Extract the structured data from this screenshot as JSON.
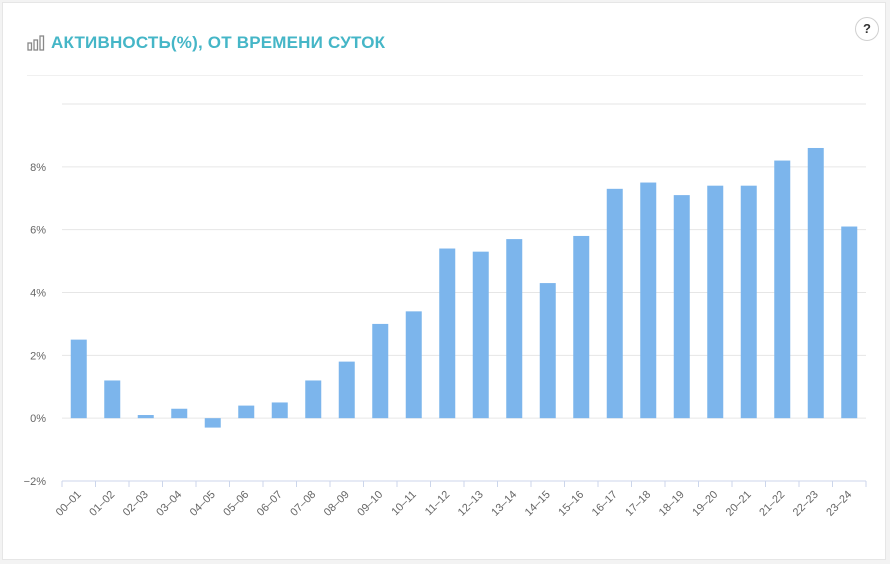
{
  "header": {
    "title": "АКТИВНОСТЬ(%), ОТ ВРЕМЕНИ СУТОК",
    "help_label": "?"
  },
  "colors": {
    "accent": "#45b6c7",
    "bar": "#7cb5ec",
    "grid": "#e6e6e6",
    "axis_text": "#666666"
  },
  "icons": {
    "title_icon": "bar-chart-icon",
    "help_icon": "question-icon"
  },
  "chart_data": {
    "type": "bar",
    "title": "",
    "xlabel": "",
    "ylabel": "",
    "ylim": [
      -2,
      10
    ],
    "yticks": [
      -2,
      0,
      2,
      4,
      6,
      8
    ],
    "ytick_labels": [
      "−2%",
      "0%",
      "2%",
      "4%",
      "6%",
      "8%"
    ],
    "grid": true,
    "legend": "none",
    "categories": [
      "00–01",
      "01–02",
      "02–03",
      "03–04",
      "04–05",
      "05–06",
      "06–07",
      "07–08",
      "08–09",
      "09–10",
      "10–11",
      "11–12",
      "12–13",
      "13–14",
      "14–15",
      "15–16",
      "16–17",
      "17–18",
      "18–19",
      "19–20",
      "20–21",
      "21–22",
      "22–23",
      "23–24"
    ],
    "series": [
      {
        "values": [
          2.5,
          1.2,
          0.1,
          0.3,
          -0.3,
          0.4,
          0.5,
          1.2,
          1.8,
          3.0,
          3.4,
          5.4,
          5.3,
          5.7,
          4.3,
          5.8,
          7.3,
          7.5,
          7.1,
          7.4,
          7.4,
          8.2,
          8.6,
          6.1
        ]
      }
    ]
  }
}
